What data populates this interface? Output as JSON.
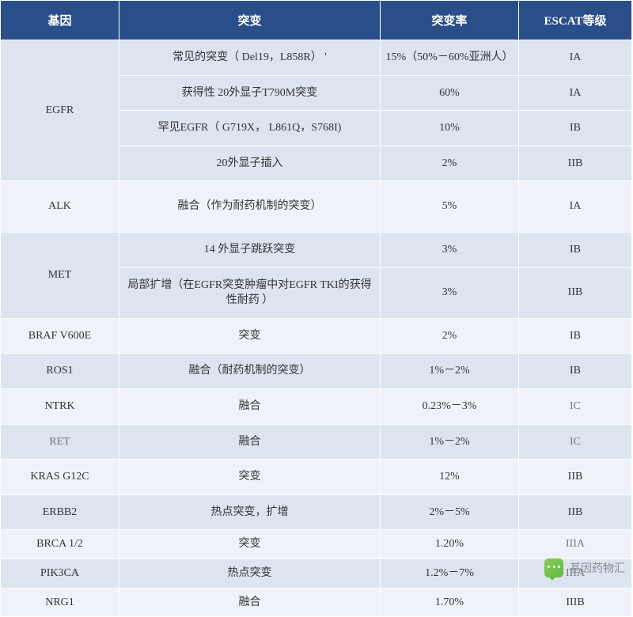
{
  "colors": {
    "header_bg": "#2a4e8a",
    "header_text": "#ffffff",
    "band_a": "#dce4f0",
    "band_b": "#eff3f9",
    "border": "#ffffff",
    "text": "#333333",
    "muted": "#777777"
  },
  "headers": {
    "gene": "基因",
    "mutation": "突变",
    "rate": "突变率",
    "escat": "ESCAT等级"
  },
  "rows": [
    {
      "gene": "EGFR",
      "gene_rowspan": 4,
      "band": "a",
      "mutation": "常见的突变（ Del19，L858R） '",
      "rate": "15%（50%－60%亚洲人）",
      "escat": "IA"
    },
    {
      "band": "a",
      "mutation": "获得性 20外显子T790M突变",
      "rate": "60%",
      "escat": "IA"
    },
    {
      "band": "a",
      "mutation": "罕见EGFR（ G719X，  L861Q，S768I)",
      "rate": "10%",
      "escat": "IB"
    },
    {
      "band": "a",
      "mutation": "20外显子插入",
      "rate": "2%",
      "escat": "IIB"
    },
    {
      "gene": "ALK",
      "gene_rowspan": 1,
      "band": "b",
      "mutation": "融合（作为耐药机制的突变）",
      "rate": "5%",
      "escat": "IA",
      "tall": true
    },
    {
      "gene": "MET",
      "gene_rowspan": 2,
      "band": "a",
      "mutation": "14 外显子跳跃突变",
      "rate": "3%",
      "escat": "IB"
    },
    {
      "band": "a",
      "mutation": "局部扩增（在EGFR突变肿瘤中对EGFR TKI的获得性耐药 ）",
      "rate": "3%",
      "escat": "IIB"
    },
    {
      "gene": "BRAF  V600E",
      "gene_rowspan": 1,
      "band": "b",
      "mutation": "突变",
      "rate": "2%",
      "escat": "IB"
    },
    {
      "gene": "ROS1",
      "gene_rowspan": 1,
      "band": "a",
      "mutation": "融合（耐药机制的突变）",
      "rate": "1%－2%",
      "escat": "IB"
    },
    {
      "gene": "NTRK",
      "gene_rowspan": 1,
      "band": "b",
      "mutation": "融合",
      "rate": "0.23%－3%",
      "escat": "IC",
      "escat_muted": true
    },
    {
      "gene": "RET",
      "gene_rowspan": 1,
      "band": "a",
      "mutation": "融合",
      "rate": "1%－2%",
      "escat": "IC",
      "escat_muted": true,
      "gene_muted": true
    },
    {
      "gene": "KRAS  G12C",
      "gene_rowspan": 1,
      "band": "b",
      "mutation": "突变",
      "rate": "12%",
      "escat": "IIB"
    },
    {
      "gene": "ERBB2",
      "gene_rowspan": 1,
      "band": "a",
      "mutation": "热点突变，扩增",
      "rate": "2%－5%",
      "escat": "IIB"
    },
    {
      "gene": "BRCA 1/2",
      "gene_rowspan": 1,
      "band": "b",
      "mutation": "突变",
      "rate": "1.20%",
      "escat": "IIIA",
      "escat_muted": true,
      "short": true
    },
    {
      "gene": "PIK3CA",
      "gene_rowspan": 1,
      "band": "a",
      "mutation": "热点突变",
      "rate": "1.2%－7%",
      "escat": "IIIA",
      "escat_muted": true,
      "short": true
    },
    {
      "gene": "NRG1",
      "gene_rowspan": 1,
      "band": "b",
      "mutation": "融合",
      "rate": "1.70%",
      "escat": "IIIB",
      "short": true
    }
  ],
  "watermark": "基因药物汇"
}
